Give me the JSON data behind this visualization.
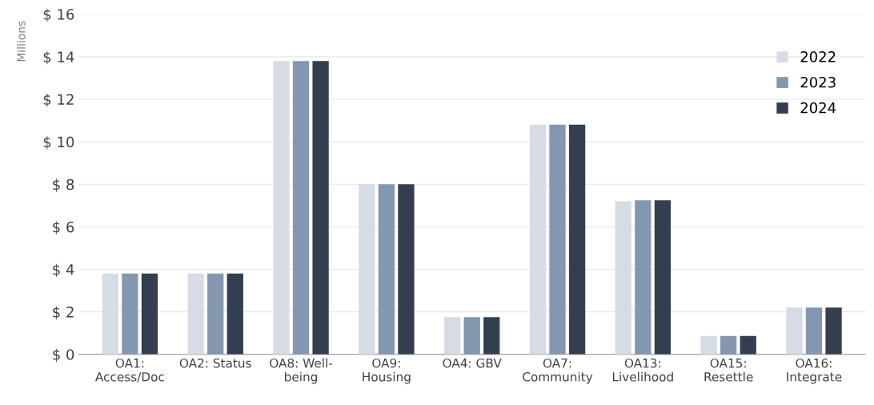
{
  "chart_data": {
    "type": "bar",
    "ylabel": "Millions",
    "categories": [
      "OA1:\nAccess/Doc",
      "OA2: Status",
      "OA8: Well-\nbeing",
      "OA9:\nHousing",
      "OA4: GBV",
      "OA7:\nCommunity",
      "OA13:\nLivelihood",
      "OA15:\nResettle",
      "OA16:\nIntegrate"
    ],
    "series": [
      {
        "name": "2022",
        "color": "#d6dce5",
        "values": [
          3.8,
          3.8,
          13.8,
          8.0,
          1.75,
          10.8,
          7.2,
          0.87,
          2.2
        ]
      },
      {
        "name": "2023",
        "color": "#8497b0",
        "values": [
          3.8,
          3.8,
          13.8,
          8.0,
          1.75,
          10.8,
          7.25,
          0.87,
          2.2
        ]
      },
      {
        "name": "2024",
        "color": "#333f50",
        "values": [
          3.8,
          3.8,
          13.8,
          8.0,
          1.75,
          10.8,
          7.25,
          0.87,
          2.2
        ]
      }
    ],
    "ylim": [
      0,
      16
    ],
    "yticks": [
      {
        "value": 0,
        "label": "$ 0"
      },
      {
        "value": 2,
        "label": "$ 2"
      },
      {
        "value": 4,
        "label": "$ 4"
      },
      {
        "value": 6,
        "label": "$ 6"
      },
      {
        "value": 8,
        "label": "$ 8"
      },
      {
        "value": 10,
        "label": "$ 10"
      },
      {
        "value": 12,
        "label": "$ 12"
      },
      {
        "value": 14,
        "label": "$ 14"
      },
      {
        "value": 16,
        "label": "$ 16"
      }
    ],
    "grid": "y",
    "legend": "top right"
  }
}
